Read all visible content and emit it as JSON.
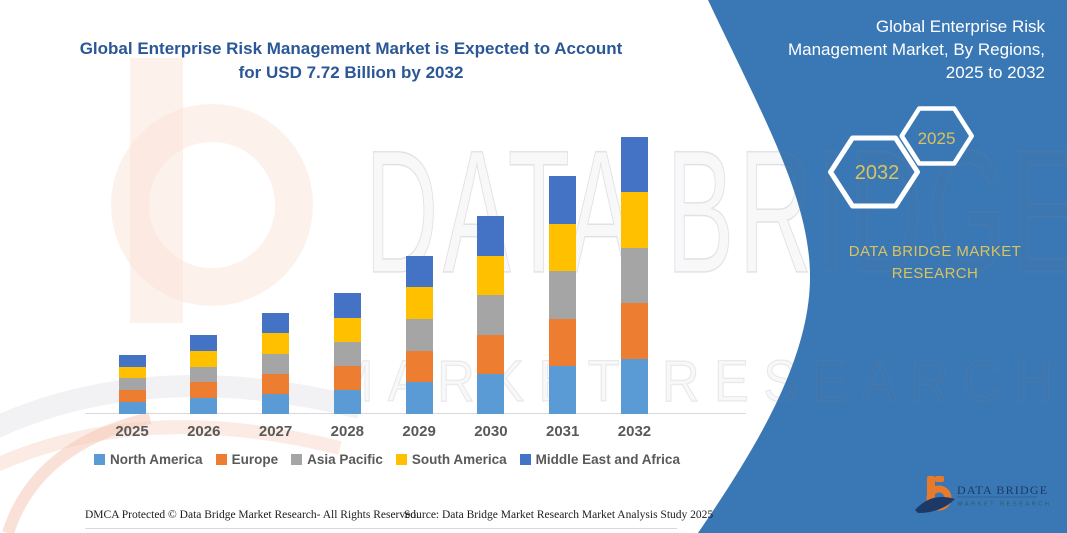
{
  "colors": {
    "panel_blue": "#3a78b5",
    "accent_yellow": "#d9c35e",
    "title_blue": "#2b5797",
    "axis_label_gray": "#595959",
    "axis_line_gray": "#d9d9d9",
    "logo_orange": "#e87a2b",
    "logo_navy": "#1d3968",
    "logo_teal": "#2b5a66"
  },
  "header": {
    "title_lines": [
      "Global Enterprise Risk Management Market is Expected to Account",
      "for USD 7.72 Billion by 2032"
    ]
  },
  "panel": {
    "heading_lines": [
      "Global Enterprise Risk",
      "Management Market, By Regions,",
      "2025 to 2032"
    ],
    "hexagons": [
      {
        "label": "2032"
      },
      {
        "label": "2025"
      }
    ],
    "brand_lines": [
      "DATA BRIDGE MARKET",
      "RESEARCH"
    ]
  },
  "chart_data": {
    "type": "bar",
    "stacked": true,
    "title": "Global Enterprise Risk Management Market is Expected to Account for USD 7.72 Billion by 2032",
    "unit": "USD Billion",
    "categories": [
      "2025",
      "2026",
      "2027",
      "2028",
      "2029",
      "2030",
      "2031",
      "2032"
    ],
    "series": [
      {
        "name": "North America",
        "color": "#5B9BD5",
        "values": [
          0.33,
          0.44,
          0.56,
          0.67,
          0.88,
          1.1,
          1.32,
          1.54
        ]
      },
      {
        "name": "Europe",
        "color": "#ED7D31",
        "values": [
          0.33,
          0.44,
          0.56,
          0.67,
          0.88,
          1.1,
          1.32,
          1.54
        ]
      },
      {
        "name": "Asia Pacific",
        "color": "#A5A5A5",
        "values": [
          0.33,
          0.44,
          0.56,
          0.67,
          0.88,
          1.1,
          1.32,
          1.54
        ]
      },
      {
        "name": "South America",
        "color": "#FFC000",
        "values": [
          0.33,
          0.44,
          0.56,
          0.67,
          0.88,
          1.1,
          1.32,
          1.54
        ]
      },
      {
        "name": "Middle East and Africa",
        "color": "#4472C4",
        "values": [
          0.33,
          0.44,
          0.56,
          0.67,
          0.88,
          1.1,
          1.32,
          1.54
        ]
      }
    ],
    "totals_by_year": [
      1.65,
      2.2,
      2.8,
      3.35,
      4.4,
      5.5,
      6.6,
      7.72
    ],
    "ylim": [
      0,
      8
    ],
    "grid": false,
    "legend_position": "bottom"
  },
  "watermark": {
    "line1": "DATA BRIDGE",
    "line2": "MARKET RESEARCH"
  },
  "footer": {
    "dmca": "DMCA Protected © Data Bridge Market Research-  All Rights Reserved.",
    "source": "Source: Data Bridge Market Research  Market Analysis Study 2025"
  },
  "logo": {
    "line1": "DATA BRIDGE",
    "line2": "MARKET RESEARCH"
  }
}
